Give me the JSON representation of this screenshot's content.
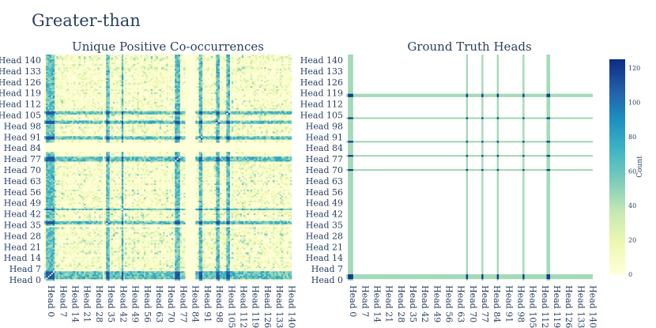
{
  "page": {
    "title": "Greater-than"
  },
  "colors": {
    "scale": [
      "#ffffd9",
      "#edf8b1",
      "#c7e9b4",
      "#7fcdbb",
      "#41b6c4",
      "#1d91c0",
      "#225ea8",
      "#0c2c84"
    ],
    "text": "#2a3f5f"
  },
  "chart_data": [
    {
      "type": "heatmap",
      "title": "Unique Positive Co-occurrences",
      "n": 144,
      "xlabel": "",
      "ylabel": "",
      "x_tick_labels": [
        "Head 0",
        "Head 7",
        "Head 14",
        "Head 21",
        "Head 28",
        "Head 35",
        "Head 42",
        "Head 49",
        "Head 56",
        "Head 63",
        "Head 70",
        "Head 77",
        "Head 84",
        "Head 91",
        "Head 98",
        "Head 105",
        "Head 112",
        "Head 119",
        "Head 126",
        "Head 133",
        "Head 140"
      ],
      "y_tick_labels": [
        "Head 0",
        "Head 7",
        "Head 14",
        "Head 21",
        "Head 28",
        "Head 35",
        "Head 42",
        "Head 49",
        "Head 56",
        "Head 63",
        "Head 70",
        "Head 77",
        "Head 84",
        "Head 91",
        "Head 98",
        "Head 105",
        "Head 112",
        "Head 119",
        "Head 126",
        "Head 133",
        "Head 140"
      ],
      "tick_step": 7,
      "zlim": [
        0,
        125
      ],
      "strong_heads": [
        1,
        2,
        3,
        4,
        5,
        36,
        37,
        45,
        76,
        77,
        78,
        90,
        91,
        100,
        101,
        106,
        107
      ],
      "strong_value": 105,
      "blank_heads": [
        34,
        82,
        83,
        84,
        85,
        86,
        87
      ],
      "background_range": [
        0,
        50
      ]
    },
    {
      "type": "heatmap",
      "title": "Ground Truth Heads",
      "n": 144,
      "xlabel": "",
      "ylabel": "",
      "x_tick_labels": [
        "Head 0",
        "Head 7",
        "Head 14",
        "Head 21",
        "Head 28",
        "Head 35",
        "Head 42",
        "Head 49",
        "Head 56",
        "Head 63",
        "Head 70",
        "Head 77",
        "Head 84",
        "Head 91",
        "Head 98",
        "Head 105",
        "Head 112",
        "Head 119",
        "Head 126",
        "Head 133",
        "Head 140"
      ],
      "y_tick_labels": [
        "Head 0",
        "Head 7",
        "Head 14",
        "Head 21",
        "Head 28",
        "Head 35",
        "Head 42",
        "Head 49",
        "Head 56",
        "Head 63",
        "Head 70",
        "Head 77",
        "Head 84",
        "Head 91",
        "Head 98",
        "Head 105",
        "Head 112",
        "Head 119",
        "Head 126",
        "Head 133",
        "Head 140"
      ],
      "tick_step": 7,
      "zlim": [
        0,
        125
      ],
      "ground_truth_heads": [
        1,
        2,
        3,
        70,
        79,
        88,
        103,
        117,
        118
      ],
      "line_value": 45,
      "cross_value": 120
    }
  ],
  "colorbar": {
    "title": "Count",
    "ticks": [
      0,
      20,
      40,
      60,
      80,
      100,
      120
    ],
    "range": [
      0,
      125
    ]
  }
}
